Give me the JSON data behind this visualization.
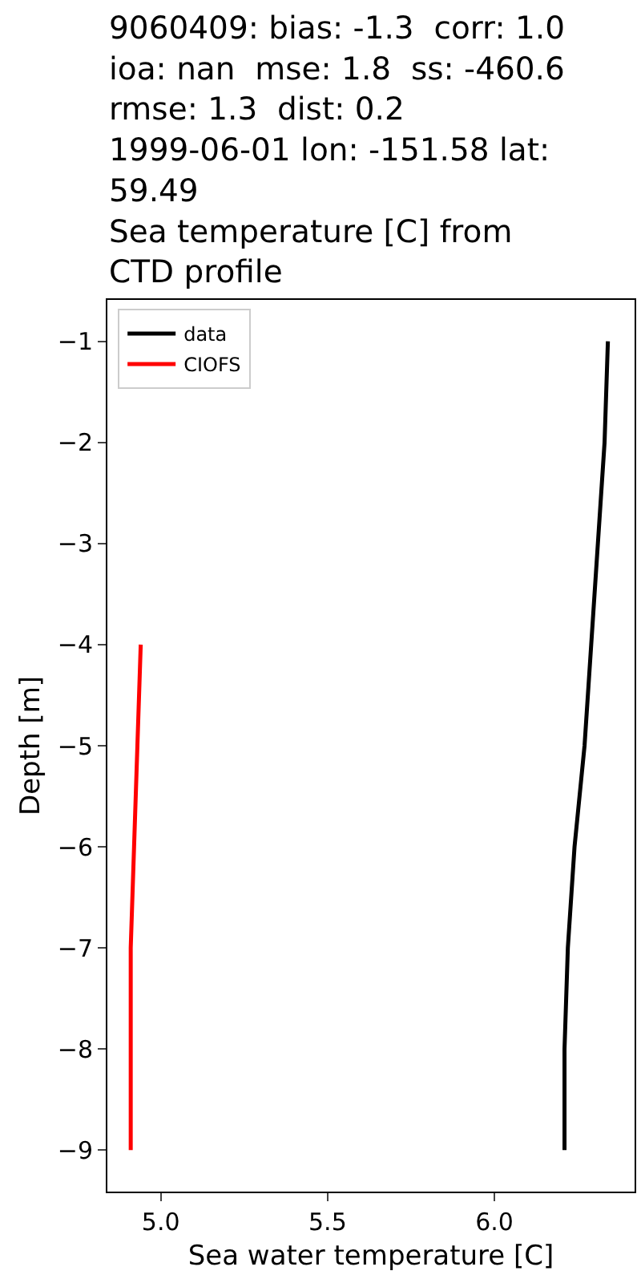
{
  "chart_data": {
    "type": "line",
    "title": "9060409: bias: -1.3  corr: 1.0\nioa: nan  mse: 1.8  ss: -460.6\nrmse: 1.3  dist: 0.2\n1999-06-01 lon: -151.58 lat:\n59.49\nSea temperature [C] from\nCTD profile",
    "xlabel": "Sea water temperature [C]",
    "ylabel": "Depth [m]",
    "series": [
      {
        "name": "data",
        "color": "#000000",
        "x": [
          6.34,
          6.33,
          6.31,
          6.29,
          6.27,
          6.24,
          6.22,
          6.21,
          6.21
        ],
        "values": [
          -1,
          -2,
          -3,
          -4,
          -5,
          -6,
          -7,
          -8,
          -9
        ]
      },
      {
        "name": "CIOFS",
        "color": "#ff0000",
        "x": [
          4.94,
          4.93,
          4.92,
          4.91,
          4.91,
          4.91
        ],
        "values": [
          -4,
          -5,
          -6,
          -7,
          -8,
          -9
        ]
      }
    ],
    "xlim": [
      4.84,
      6.42
    ],
    "xticks": [
      {
        "value": 5,
        "label": "5.0"
      },
      5.5,
      {
        "value": 6,
        "label": "6.0"
      }
    ],
    "ylim": [
      -9.41,
      -0.59
    ],
    "yticks": [
      {
        "value": -9,
        "label": "−9"
      },
      {
        "value": -8,
        "label": "−8"
      },
      {
        "value": -7,
        "label": "−7"
      },
      {
        "value": -6,
        "label": "−6"
      },
      {
        "value": -5,
        "label": "−5"
      },
      {
        "value": -4,
        "label": "−4"
      },
      {
        "value": -3,
        "label": "−3"
      },
      {
        "value": -2,
        "label": "−2"
      },
      {
        "value": -1,
        "label": "−1"
      }
    ],
    "grid": false,
    "legend": "top left",
    "marker": "none",
    "line_style": "solid"
  }
}
